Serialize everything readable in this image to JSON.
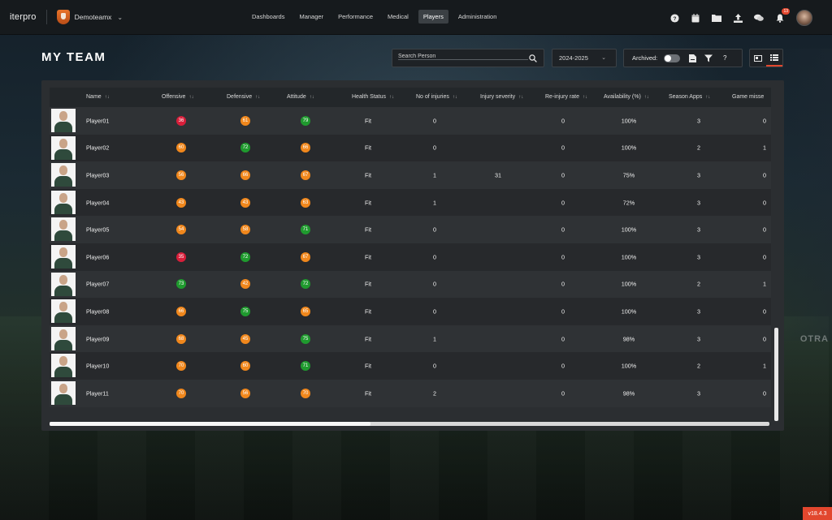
{
  "app": {
    "logo": "iterpro",
    "team": "Demoteamx"
  },
  "nav": [
    "Dashboards",
    "Manager",
    "Performance",
    "Medical",
    "Players",
    "Administration"
  ],
  "nav_active": "Players",
  "notifications_count": "13",
  "page": {
    "title": "MY TEAM"
  },
  "search": {
    "placeholder": "Search Person"
  },
  "season": "2024-2025",
  "toolbar": {
    "archived_label": "Archived:"
  },
  "colors": {
    "accent": "#e2472e",
    "score_red": "#d81e3a",
    "score_orange": "#f0871c",
    "score_green": "#1f9a2e"
  },
  "columns": [
    "Name",
    "Offensive",
    "Defensive",
    "Attitude",
    "Health Status",
    "No of injuries",
    "Injury severity",
    "Re-injury rate",
    "Availability (%)",
    "Season Apps",
    "Game misse"
  ],
  "rows": [
    {
      "name": "Player01",
      "offensive": "36",
      "offensive_color": "red",
      "defensive": "61",
      "defensive_color": "orange",
      "attitude": "79",
      "attitude_color": "green",
      "health": "Fit",
      "injuries": "0",
      "severity": "",
      "reinjury": "0",
      "availability": "100%",
      "apps": "3",
      "missed": "0"
    },
    {
      "name": "Player02",
      "offensive": "60",
      "offensive_color": "orange",
      "defensive": "72",
      "defensive_color": "green",
      "attitude": "66",
      "attitude_color": "orange",
      "health": "Fit",
      "injuries": "0",
      "severity": "",
      "reinjury": "0",
      "availability": "100%",
      "apps": "2",
      "missed": "1"
    },
    {
      "name": "Player03",
      "offensive": "56",
      "offensive_color": "orange",
      "defensive": "66",
      "defensive_color": "orange",
      "attitude": "67",
      "attitude_color": "orange",
      "health": "Fit",
      "injuries": "1",
      "severity": "31",
      "reinjury": "0",
      "availability": "75%",
      "apps": "3",
      "missed": "0"
    },
    {
      "name": "Player04",
      "offensive": "43",
      "offensive_color": "orange",
      "defensive": "43",
      "defensive_color": "orange",
      "attitude": "63",
      "attitude_color": "orange",
      "health": "Fit",
      "injuries": "1",
      "severity": "",
      "reinjury": "0",
      "availability": "72%",
      "apps": "3",
      "missed": "0"
    },
    {
      "name": "Player05",
      "offensive": "54",
      "offensive_color": "orange",
      "defensive": "58",
      "defensive_color": "orange",
      "attitude": "71",
      "attitude_color": "green",
      "health": "Fit",
      "injuries": "0",
      "severity": "",
      "reinjury": "0",
      "availability": "100%",
      "apps": "3",
      "missed": "0"
    },
    {
      "name": "Player06",
      "offensive": "35",
      "offensive_color": "red",
      "defensive": "72",
      "defensive_color": "green",
      "attitude": "67",
      "attitude_color": "orange",
      "health": "Fit",
      "injuries": "0",
      "severity": "",
      "reinjury": "0",
      "availability": "100%",
      "apps": "3",
      "missed": "0"
    },
    {
      "name": "Player07",
      "offensive": "73",
      "offensive_color": "green",
      "defensive": "42",
      "defensive_color": "orange",
      "attitude": "72",
      "attitude_color": "green",
      "health": "Fit",
      "injuries": "0",
      "severity": "",
      "reinjury": "0",
      "availability": "100%",
      "apps": "2",
      "missed": "1"
    },
    {
      "name": "Player08",
      "offensive": "66",
      "offensive_color": "orange",
      "defensive": "75",
      "defensive_color": "green",
      "attitude": "65",
      "attitude_color": "orange",
      "health": "Fit",
      "injuries": "0",
      "severity": "",
      "reinjury": "0",
      "availability": "100%",
      "apps": "3",
      "missed": "0"
    },
    {
      "name": "Player09",
      "offensive": "68",
      "offensive_color": "orange",
      "defensive": "45",
      "defensive_color": "orange",
      "attitude": "75",
      "attitude_color": "green",
      "health": "Fit",
      "injuries": "1",
      "severity": "",
      "reinjury": "0",
      "availability": "98%",
      "apps": "3",
      "missed": "0"
    },
    {
      "name": "Player10",
      "offensive": "70",
      "offensive_color": "orange",
      "defensive": "60",
      "defensive_color": "orange",
      "attitude": "71",
      "attitude_color": "green",
      "health": "Fit",
      "injuries": "0",
      "severity": "",
      "reinjury": "0",
      "availability": "100%",
      "apps": "2",
      "missed": "1"
    },
    {
      "name": "Player11",
      "offensive": "70",
      "offensive_color": "orange",
      "defensive": "56",
      "defensive_color": "orange",
      "attitude": "70",
      "attitude_color": "orange",
      "health": "Fit",
      "injuries": "2",
      "severity": "",
      "reinjury": "0",
      "availability": "98%",
      "apps": "3",
      "missed": "0"
    }
  ],
  "icons": [
    "help-icon",
    "calendar-icon",
    "folder-icon",
    "upload-icon",
    "chat-icon",
    "bell-icon",
    "search-icon",
    "chevron-down-icon",
    "report-icon",
    "filter-icon",
    "question-icon",
    "card-view-icon",
    "list-view-icon",
    "sort-icon"
  ],
  "version": "v18.4.3",
  "background_text": "OTRA"
}
